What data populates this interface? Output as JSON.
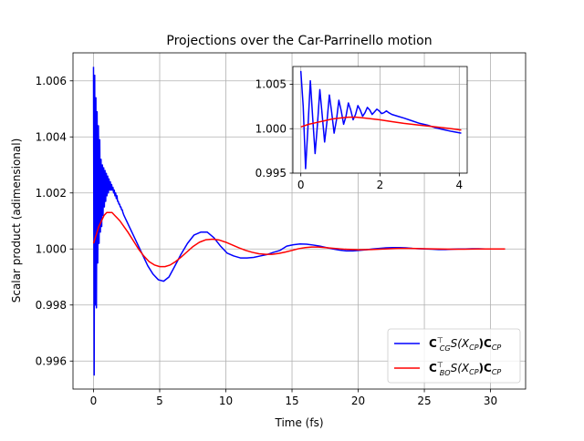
{
  "chart_data": [
    {
      "type": "line",
      "title": "Projections over the Car-Parrinello motion",
      "xlabel": "Time (fs)",
      "ylabel": "Scalar product (adimensional)",
      "xlim": [
        -1.55,
        32.65
      ],
      "ylim": [
        0.995,
        1.007
      ],
      "xticks": [
        0,
        5,
        10,
        15,
        20,
        25,
        30
      ],
      "xtick_labels": [
        "0",
        "5",
        "10",
        "15",
        "20",
        "25",
        "30"
      ],
      "yticks": [
        0.996,
        0.998,
        1.0,
        1.002,
        1.004,
        1.006
      ],
      "ytick_labels": [
        "0.996",
        "0.998",
        "1.000",
        "1.002",
        "1.004",
        "1.006"
      ],
      "grid": true,
      "legend_position": "lower right",
      "series": [
        {
          "name": "C_CG^T S(X_CP) C_CP",
          "legend_main": "C",
          "legend_sub1": "CG",
          "legend_sup": "⊤",
          "legend_mid": "S(X",
          "legend_sub2": "CP",
          "legend_mid2": ")C",
          "legend_sub3": "CP",
          "color": "#0000ff",
          "x": [
            0,
            0.05,
            0.09,
            0.13,
            0.18,
            0.22,
            0.27,
            0.32,
            0.37,
            0.42,
            0.47,
            0.52,
            0.57,
            0.62,
            0.67,
            0.72,
            0.77,
            0.82,
            0.87,
            0.92,
            0.97,
            1.02,
            1.07,
            1.12,
            1.17,
            1.22,
            1.27,
            1.32,
            1.37,
            1.42,
            1.47,
            1.52,
            1.57,
            1.62,
            1.67,
            1.72,
            1.77,
            1.82,
            1.87,
            1.92,
            1.97,
            2.02,
            2.07,
            2.12,
            2.17,
            2.22,
            2.3,
            2.4,
            2.5,
            2.7,
            2.9,
            3.1,
            3.3,
            3.5,
            3.8,
            4.1,
            4.5,
            4.9,
            5.3,
            5.7,
            6.1,
            6.6,
            7.1,
            7.6,
            8.1,
            8.6,
            9.1,
            9.6,
            10.1,
            10.6,
            11.1,
            11.6,
            12.1,
            12.6,
            13.1,
            13.6,
            14.1,
            14.6,
            15.1,
            15.6,
            16.1,
            16.6,
            17.1,
            17.6,
            18.1,
            18.6,
            19.1,
            19.6,
            20.1,
            20.6,
            21.1,
            21.6,
            22.1,
            22.6,
            23.1,
            23.6,
            24.1,
            24.6,
            25.1,
            25.6,
            26.1,
            26.6,
            27.1,
            27.6,
            28.1,
            28.6,
            29.1,
            29.6,
            30.1,
            30.6,
            31.1
          ],
          "y": [
            1.0065,
            0.9955,
            1.0062,
            0.998,
            1.0054,
            0.9979,
            1.0049,
            0.9995,
            1.0044,
            1.0002,
            1.0039,
            1.0006,
            1.0032,
            1.0008,
            1.003,
            1.0012,
            1.0029,
            1.0015,
            1.0028,
            1.0017,
            1.0027,
            1.0019,
            1.0026,
            1.002,
            1.0025,
            1.0021,
            1.0024,
            1.0021,
            1.0023,
            1.0021,
            1.0022,
            1.002,
            1.0021,
            1.0019,
            1.002,
            1.0018,
            1.0019,
            1.0017,
            1.0017,
            1.0016,
            1.0016,
            1.0015,
            1.0015,
            1.0014,
            1.0014,
            1.0013,
            1.0012,
            1.0011,
            1.001,
            1.0008,
            1.0006,
            1.0004,
            1.0002,
            1.0,
            0.9997,
            0.9994,
            0.9991,
            0.9989,
            0.99885,
            0.999,
            0.99935,
            0.9998,
            1.0002,
            1.0005,
            1.0006,
            1.0006,
            1.0004,
            1.0001,
            0.99985,
            0.99975,
            0.99968,
            0.99968,
            0.9997,
            0.99975,
            0.9998,
            0.99988,
            0.99995,
            1.0001,
            1.00015,
            1.00018,
            1.00017,
            1.00014,
            1.0001,
            1.00005,
            1.0,
            0.99996,
            0.99993,
            0.99993,
            0.99995,
            0.99997,
            1.0,
            1.00002,
            1.00004,
            1.00005,
            1.00005,
            1.00004,
            1.00002,
            1.00001,
            1.0,
            0.99999,
            0.99998,
            0.99998,
            0.99999,
            1.0,
            1.0,
            1.00001,
            1.00001,
            1.0,
            1.0,
            1.0,
            1.0
          ]
        },
        {
          "name": "C_BO^T S(X_CP) C_CP",
          "legend_main": "C",
          "legend_sub1": "BO",
          "legend_sup": "⊤",
          "legend_mid": "S(X",
          "legend_sub2": "CP",
          "legend_mid2": ")C",
          "legend_sub3": "CP",
          "color": "#ff0000",
          "x": [
            0,
            0.2,
            0.4,
            0.6,
            0.8,
            1.0,
            1.2,
            1.4,
            1.6,
            1.8,
            2.0,
            2.3,
            2.6,
            3.0,
            3.4,
            3.8,
            4.2,
            4.6,
            5.0,
            5.4,
            5.8,
            6.2,
            6.6,
            7.0,
            7.5,
            8.0,
            8.5,
            9.0,
            9.5,
            10.0,
            10.5,
            11.0,
            11.5,
            12.0,
            12.5,
            13.0,
            13.5,
            14.0,
            14.5,
            15.0,
            15.5,
            16.0,
            16.5,
            17.0,
            17.5,
            18.0,
            18.5,
            19.0,
            20.0,
            21.0,
            22.0,
            23.0,
            24.0,
            25.0,
            26.0,
            27.0,
            28.0,
            29.0,
            30.0,
            31.1
          ],
          "y": [
            1.0002,
            1.0005,
            1.0008,
            1.001,
            1.0012,
            1.0013,
            1.0013,
            1.0013,
            1.0012,
            1.0011,
            1.001,
            1.0008,
            1.0006,
            1.0003,
            1.0,
            0.99975,
            0.99955,
            0.99943,
            0.99937,
            0.99937,
            0.99943,
            0.99955,
            0.9997,
            0.99987,
            1.00008,
            1.00024,
            1.00033,
            1.00035,
            1.00032,
            1.00024,
            1.00014,
            1.00004,
            0.99995,
            0.99988,
            0.99983,
            0.99981,
            0.99981,
            0.99984,
            0.99989,
            0.99995,
            1.00001,
            1.00005,
            1.00007,
            1.00007,
            1.00005,
            1.00003,
            1.00001,
            0.99999,
            0.99997,
            0.99998,
            1.0,
            1.00002,
            1.00002,
            1.00001,
            1.0,
            0.99999,
            0.99999,
            1.0,
            1.0,
            1.0
          ]
        }
      ]
    },
    {
      "type": "line",
      "title": "",
      "xlabel": "",
      "ylabel": "",
      "xlim": [
        -0.2,
        4.2
      ],
      "ylim": [
        0.995,
        1.007
      ],
      "xticks": [
        0,
        2,
        4
      ],
      "xtick_labels": [
        "0",
        "2",
        "4"
      ],
      "yticks": [
        0.995,
        1.0,
        1.005
      ],
      "ytick_labels": [
        "0.995",
        "1.000",
        "1.005"
      ],
      "grid": true,
      "series": [
        {
          "color": "#0000ff",
          "x": [
            0,
            0.06,
            0.12,
            0.18,
            0.24,
            0.3,
            0.36,
            0.42,
            0.48,
            0.54,
            0.6,
            0.66,
            0.72,
            0.78,
            0.84,
            0.9,
            0.96,
            1.02,
            1.08,
            1.14,
            1.2,
            1.26,
            1.32,
            1.38,
            1.44,
            1.5,
            1.56,
            1.62,
            1.68,
            1.74,
            1.8,
            1.86,
            1.92,
            1.98,
            2.04,
            2.1,
            2.16,
            2.22,
            2.3,
            2.45,
            2.6,
            2.8,
            3.0,
            3.2,
            3.4,
            3.6,
            3.8,
            4.05
          ],
          "y": [
            1.0065,
            1.0025,
            0.9955,
            1.0002,
            1.0054,
            1.0012,
            0.9972,
            1.0005,
            1.0044,
            1.0015,
            0.9985,
            1.0008,
            1.0038,
            1.0018,
            0.9995,
            1.001,
            1.0032,
            1.002,
            1.0005,
            1.0014,
            1.0029,
            1.0021,
            1.001,
            1.0016,
            1.0026,
            1.0021,
            1.0014,
            1.0018,
            1.0024,
            1.0021,
            1.0016,
            1.0019,
            1.0022,
            1.002,
            1.0017,
            1.0018,
            1.002,
            1.0018,
            1.0016,
            1.0014,
            1.0012,
            1.0009,
            1.0006,
            1.0004,
            1.0001,
            0.9999,
            0.9997,
            0.9995
          ]
        },
        {
          "color": "#ff0000",
          "x": [
            0,
            0.2,
            0.4,
            0.6,
            0.8,
            1.0,
            1.2,
            1.4,
            1.6,
            1.8,
            2.0,
            2.3,
            2.6,
            3.0,
            3.4,
            3.8,
            4.05
          ],
          "y": [
            1.0002,
            1.0005,
            1.0007,
            1.0009,
            1.0011,
            1.0012,
            1.0013,
            1.0013,
            1.0012,
            1.0011,
            1.001,
            1.0008,
            1.0006,
            1.0004,
            1.0002,
            1.0,
            0.99985
          ]
        }
      ]
    }
  ]
}
